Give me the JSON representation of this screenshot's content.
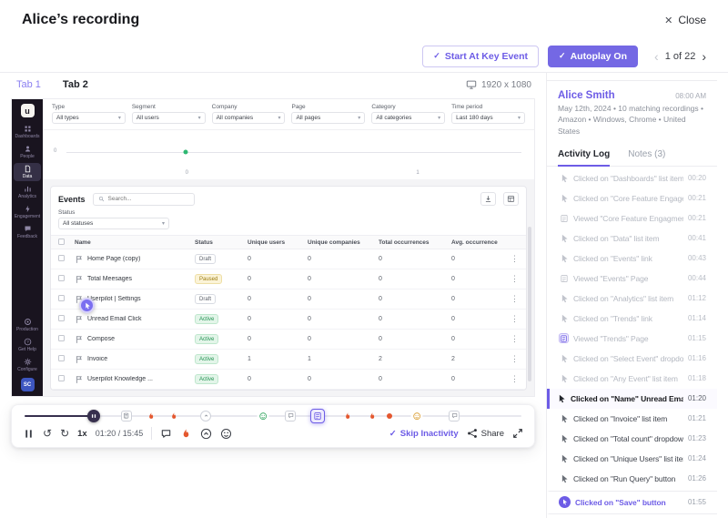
{
  "colors": {
    "accent": "#6d5ce6",
    "active_green": "#209150",
    "paused_yellow": "#9c7c0d",
    "rage_orange": "#e4572e",
    "sidebar_dark": "#19141f"
  },
  "icons": {
    "close": "✕",
    "check": "✓",
    "chevron_left": "‹",
    "chevron_right": "›",
    "rewind": "↺",
    "forward": "↻"
  },
  "header": {
    "title": "Alice’s recording",
    "close_label": "Close"
  },
  "toolbar": {
    "start_at_key_event_label": "Start At Key Event",
    "autoplay_label": "Autoplay On",
    "pagination": "1 of 22"
  },
  "tabstrip": {
    "tab1": "Tab 1",
    "tab2": "Tab 2",
    "resolution": "1920 x 1080"
  },
  "recorded_app": {
    "brand_initial": "u",
    "sidebar": [
      {
        "label": "Dashboards",
        "icon": "dashboards"
      },
      {
        "label": "People",
        "icon": "people"
      },
      {
        "label": "Data",
        "icon": "data",
        "active": true
      },
      {
        "label": "Analytics",
        "icon": "analytics"
      },
      {
        "label": "Engagement",
        "icon": "engagement"
      },
      {
        "label": "Feedback",
        "icon": "feedback"
      }
    ],
    "sidebar_bottom": [
      {
        "label": "Production",
        "icon": "production"
      },
      {
        "label": "Get Help",
        "icon": "get-help"
      },
      {
        "label": "Configure",
        "icon": "configure"
      }
    ],
    "avatar": "SC",
    "filters": [
      {
        "label": "Type",
        "value": "All types"
      },
      {
        "label": "Segment",
        "value": "All users"
      },
      {
        "label": "Company",
        "value": "All companies"
      },
      {
        "label": "Page",
        "value": "All pages"
      },
      {
        "label": "Category",
        "value": "All categories"
      },
      {
        "label": "Time period",
        "value": "Last 180 days"
      }
    ],
    "chart": {
      "y_axis_label": "0",
      "point_label": "0",
      "x_end_label": "1"
    },
    "events": {
      "title": "Events",
      "search_placeholder": "Search...",
      "status_label": "Status",
      "status_value": "All statuses",
      "columns": [
        "Name",
        "Status",
        "Unique users",
        "Unique companies",
        "Total occurrences",
        "Avg. occurrence"
      ],
      "rows": [
        {
          "name": "Home Page (copy)",
          "status": "Draft",
          "unique_users": "0",
          "unique_companies": "0",
          "total_occurrences": "0",
          "avg_occurrence": "0"
        },
        {
          "name": "Total Meesages",
          "status": "Paused",
          "unique_users": "0",
          "unique_companies": "0",
          "total_occurrences": "0",
          "avg_occurrence": "0"
        },
        {
          "name": "Userpilot | Settings",
          "status": "Draft",
          "unique_users": "0",
          "unique_companies": "0",
          "total_occurrences": "0",
          "avg_occurrence": "0"
        },
        {
          "name": "Unread Email Click",
          "status": "Active",
          "unique_users": "0",
          "unique_companies": "0",
          "total_occurrences": "0",
          "avg_occurrence": "0"
        },
        {
          "name": "Compose",
          "status": "Active",
          "unique_users": "0",
          "unique_companies": "0",
          "total_occurrences": "0",
          "avg_occurrence": "0"
        },
        {
          "name": "Invoice",
          "status": "Active",
          "unique_users": "1",
          "unique_companies": "1",
          "total_occurrences": "2",
          "avg_occurrence": "2"
        },
        {
          "name": "Userpilot Knowledge ...",
          "status": "Active",
          "unique_users": "0",
          "unique_companies": "0",
          "total_occurrences": "0",
          "avg_occurrence": "0"
        }
      ]
    }
  },
  "player": {
    "speed": "1x",
    "time": "01:20 / 15:45",
    "skip_inactivity_label": "Skip Inactivity",
    "share_label": "Share",
    "progress_pct": 14,
    "markers": [
      {
        "pos": 14,
        "type": "playhead"
      },
      {
        "pos": 20.5,
        "type": "view"
      },
      {
        "pos": 25.5,
        "type": "rage"
      },
      {
        "pos": 30,
        "type": "rage"
      },
      {
        "pos": 36.5,
        "type": "scroll"
      },
      {
        "pos": 48,
        "type": "smiley-green"
      },
      {
        "pos": 53.5,
        "type": "note"
      },
      {
        "pos": 59,
        "type": "selected"
      },
      {
        "pos": 65,
        "type": "rage"
      },
      {
        "pos": 70,
        "type": "rage"
      },
      {
        "pos": 73.5,
        "type": "dot"
      },
      {
        "pos": 79,
        "type": "smiley-amber"
      },
      {
        "pos": 86.5,
        "type": "note"
      }
    ]
  },
  "panel": {
    "user_name": "Alice Smith",
    "session_time": "08:00 AM",
    "meta": "May 12th, 2024 • 10 matching recordings • Amazon • Windows, Chrome • United States",
    "tabs": {
      "activity": "Activity Log",
      "notes": "Notes (3)"
    },
    "log": [
      {
        "text": "Clicked on \"Dashboards\" list item",
        "time": "00:20",
        "icon": "click",
        "state": "past"
      },
      {
        "text": "Clicked on \"Core Feature Engagem...",
        "time": "00:21",
        "icon": "click",
        "state": "past"
      },
      {
        "text": "Viewed \"Core Feature Engagment\"",
        "time": "00:21",
        "icon": "view",
        "state": "past"
      },
      {
        "text": "Clicked on \"Data\" list item",
        "time": "00:41",
        "icon": "click",
        "state": "past"
      },
      {
        "text": "Clicked on \"Events\" link",
        "time": "00:43",
        "icon": "click",
        "state": "past"
      },
      {
        "text": "Viewed \"Events\" Page",
        "time": "00:44",
        "icon": "view",
        "state": "past"
      },
      {
        "text": "Clicked on \"Analytics\" list item",
        "time": "01:12",
        "icon": "click",
        "state": "past"
      },
      {
        "text": "Clicked on \"Trends\" link",
        "time": "01:14",
        "icon": "click",
        "state": "past"
      },
      {
        "text": "Viewed \"Trends\" Page",
        "time": "01:15",
        "icon": "view-highlight",
        "state": "past"
      },
      {
        "text": "Clicked on \"Select Event\" dropdown",
        "time": "01:16",
        "icon": "click",
        "state": "past"
      },
      {
        "text": "Clicked on \"Any Event\" list item",
        "time": "01:18",
        "icon": "click",
        "state": "past"
      },
      {
        "text": "Clicked on \"Name\"  Unread Email C...",
        "time": "01:20",
        "icon": "click",
        "state": "current"
      },
      {
        "text": "Clicked on \"Invoice\" list item",
        "time": "01:21",
        "icon": "click",
        "state": "future"
      },
      {
        "text": "Clicked on \"Total count\" dropdown",
        "time": "01:23",
        "icon": "click",
        "state": "future"
      },
      {
        "text": "Clicked on \"Unique Users\" list item",
        "time": "01:24",
        "icon": "click",
        "state": "future"
      },
      {
        "text": "Clicked on \"Run Query\" button",
        "time": "01:26",
        "icon": "click",
        "state": "future"
      },
      {
        "text": "Clicked on \"Save\" button",
        "time": "01:55",
        "icon": "click-highlight",
        "state": "note"
      }
    ]
  }
}
